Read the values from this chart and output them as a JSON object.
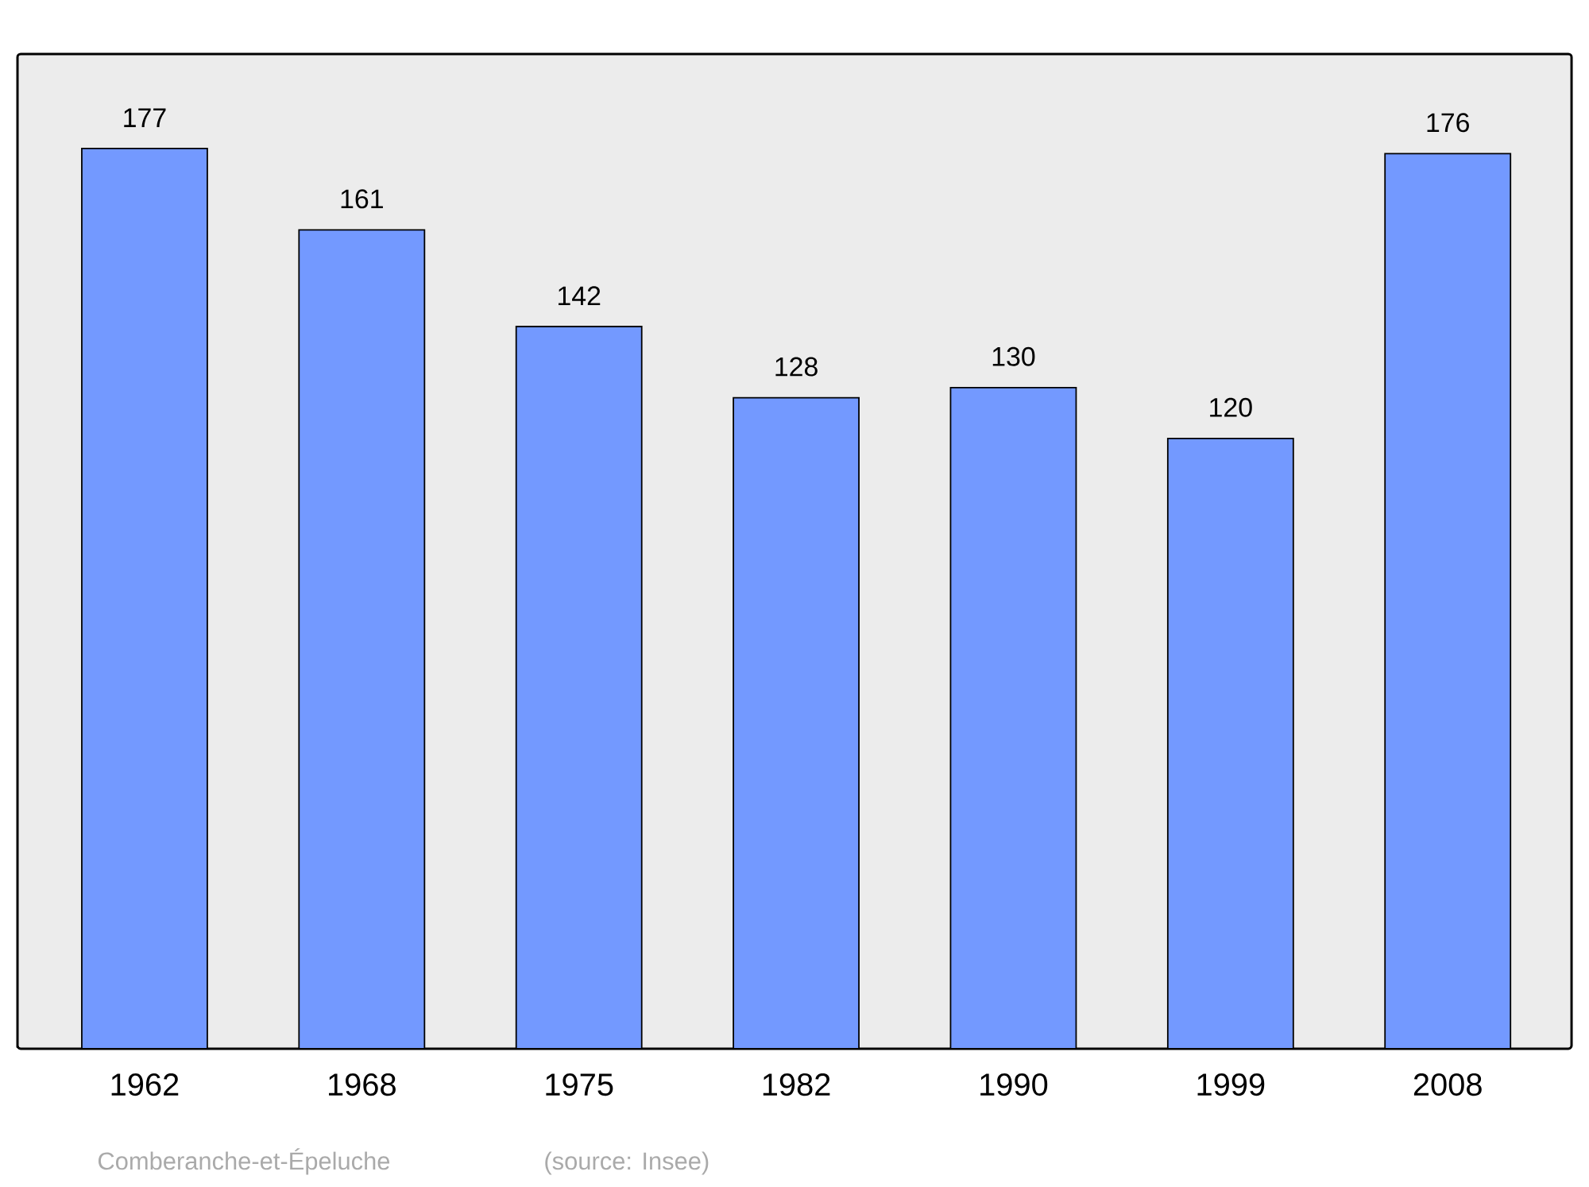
{
  "chart_data": {
    "type": "bar",
    "categories": [
      "1962",
      "1968",
      "1975",
      "1982",
      "1990",
      "1999",
      "2008"
    ],
    "values": [
      177,
      161,
      142,
      128,
      130,
      120,
      176
    ],
    "color": "#7399ff",
    "data_labels": true,
    "annotations": [
      "Comberanche-et-Épeluche",
      "(source: Insee)"
    ]
  }
}
